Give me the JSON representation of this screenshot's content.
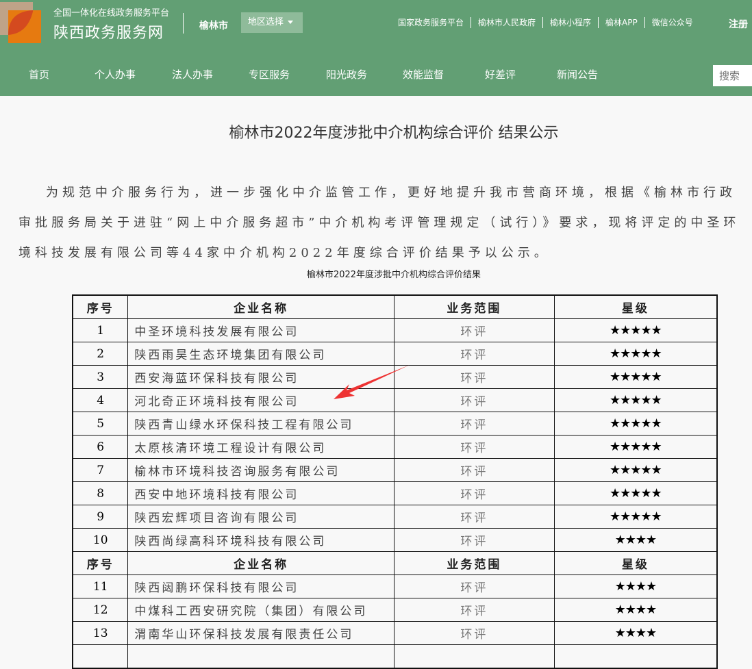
{
  "header": {
    "subtitle": "全国一体化在线政务服务平台",
    "site_name": "陕西政务服务网",
    "city": "榆林市",
    "region_select": "地区选择",
    "top_links": [
      "国家政务服务平台",
      "榆林市人民政府",
      "榆林小程序",
      "榆林APP",
      "微信公众号"
    ],
    "register": "注册",
    "nav": [
      "首页",
      "个人办事",
      "法人办事",
      "专区服务",
      "阳光政务",
      "效能监督",
      "好差评",
      "新闻公告"
    ],
    "search_placeholder": "搜索",
    "brand_color": "#629f74"
  },
  "article": {
    "title": "榆林市2022年度涉批中介机构综合评价 结果公示",
    "paragraph": "为规范中介服务行为，进一步强化中介监管工作，更好地提升我市营商环境，根据《榆林市行政审批服务局关于进驻“网上中介服务超市”中介机构考评管理规定（试行）》要求，现将评定的中圣环境科技发展有限公司等44家中介机构2022年度综合评价结果予以公示。",
    "table_caption": "榆林市2022年度涉批中介机构综合评价结果"
  },
  "table": {
    "headers": [
      "序号",
      "企业名称",
      "业务范围",
      "星级"
    ],
    "rows": [
      {
        "no": "1",
        "name": "中圣环境科技发展有限公司",
        "scope": "环评",
        "stars": "★★★★★"
      },
      {
        "no": "2",
        "name": "陕西雨昊生态环境集团有限公司",
        "scope": "环评",
        "stars": "★★★★★"
      },
      {
        "no": "3",
        "name": "西安海蓝环保科技有限公司",
        "scope": "环评",
        "stars": "★★★★★"
      },
      {
        "no": "4",
        "name": "河北奇正环境科技有限公司",
        "scope": "环评",
        "stars": "★★★★★"
      },
      {
        "no": "5",
        "name": "陕西青山绿水环保科技工程有限公司",
        "scope": "环评",
        "stars": "★★★★★"
      },
      {
        "no": "6",
        "name": "太原核清环境工程设计有限公司",
        "scope": "环评",
        "stars": "★★★★★"
      },
      {
        "no": "7",
        "name": "榆林市环境科技咨询服务有限公司",
        "scope": "环评",
        "stars": "★★★★★"
      },
      {
        "no": "8",
        "name": "西安中地环境科技有限公司",
        "scope": "环评",
        "stars": "★★★★★"
      },
      {
        "no": "9",
        "name": "陕西宏辉项目咨询有限公司",
        "scope": "环评",
        "stars": "★★★★★"
      },
      {
        "no": "10",
        "name": "陕西尚绿高科环境科技有限公司",
        "scope": "环评",
        "stars": "★★★★"
      },
      {
        "header": true
      },
      {
        "no": "11",
        "name": "陕西闼鹏环保科技有限公司",
        "scope": "环评",
        "stars": "★★★★"
      },
      {
        "no": "12",
        "name": "中煤科工西安研究院（集团）有限公司",
        "scope": "环评",
        "stars": "★★★★"
      },
      {
        "no": "13",
        "name": "渭南华山环保科技发展有限责任公司",
        "scope": "环评",
        "stars": "★★★★"
      },
      {
        "no": "",
        "name": "",
        "scope": "",
        "stars": ""
      }
    ]
  },
  "annotation_color": "#ee3333"
}
